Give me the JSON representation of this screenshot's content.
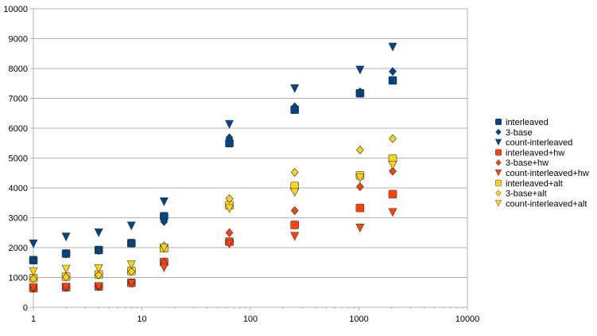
{
  "chart_data": {
    "type": "scatter",
    "x_scale": "log",
    "xlim": [
      1,
      10000
    ],
    "ylim": [
      0,
      10000
    ],
    "x_ticks": [
      "1",
      "10",
      "100",
      "1000",
      "10000"
    ],
    "y_ticks": [
      "0",
      "1000",
      "2000",
      "3000",
      "4000",
      "5000",
      "6000",
      "7000",
      "8000",
      "9000",
      "10000"
    ],
    "grid": "horizontal",
    "legend_position": "right",
    "x": [
      1,
      2,
      4,
      8,
      16,
      64,
      256,
      1024,
      2048
    ],
    "series": [
      {
        "name": "interleaved",
        "marker": "square",
        "color": "#004586",
        "values": [
          1580,
          1800,
          1920,
          2150,
          3050,
          5500,
          6620,
          7170,
          7600
        ]
      },
      {
        "name": "3-base",
        "marker": "diamond",
        "color": "#004586",
        "values": [
          1580,
          1780,
          1900,
          2150,
          2870,
          5680,
          6720,
          7220,
          7900
        ]
      },
      {
        "name": "count-interleaved",
        "marker": "triangle-down",
        "color": "#004586",
        "values": [
          2130,
          2360,
          2500,
          2730,
          3540,
          6130,
          7330,
          7950,
          8720
        ]
      },
      {
        "name": "interleaved+hw",
        "marker": "square",
        "color": "#ff420e",
        "values": [
          640,
          670,
          700,
          820,
          1520,
          2200,
          2760,
          3330,
          3790
        ]
      },
      {
        "name": "3-base+hw",
        "marker": "diamond",
        "color": "#ff420e",
        "values": [
          640,
          660,
          700,
          820,
          1480,
          2500,
          3240,
          4040,
          4560
        ]
      },
      {
        "name": "count-interleaved+hw",
        "marker": "triangle-down",
        "color": "#ff420e",
        "values": [
          660,
          680,
          700,
          800,
          1330,
          2120,
          2380,
          2660,
          3180
        ]
      },
      {
        "name": "interleaved+alt",
        "marker": "square",
        "color": "#ffd320",
        "values": [
          980,
          1030,
          1100,
          1220,
          1980,
          3420,
          4060,
          4420,
          4980
        ]
      },
      {
        "name": "3-base+alt",
        "marker": "diamond",
        "color": "#ffd320",
        "values": [
          960,
          1010,
          1080,
          1200,
          2060,
          3640,
          4520,
          5270,
          5650
        ]
      },
      {
        "name": "count-interleaved+alt",
        "marker": "triangle-down",
        "color": "#ffd320",
        "values": [
          1200,
          1280,
          1300,
          1430,
          1990,
          3310,
          3850,
          4330,
          4760
        ]
      }
    ]
  }
}
